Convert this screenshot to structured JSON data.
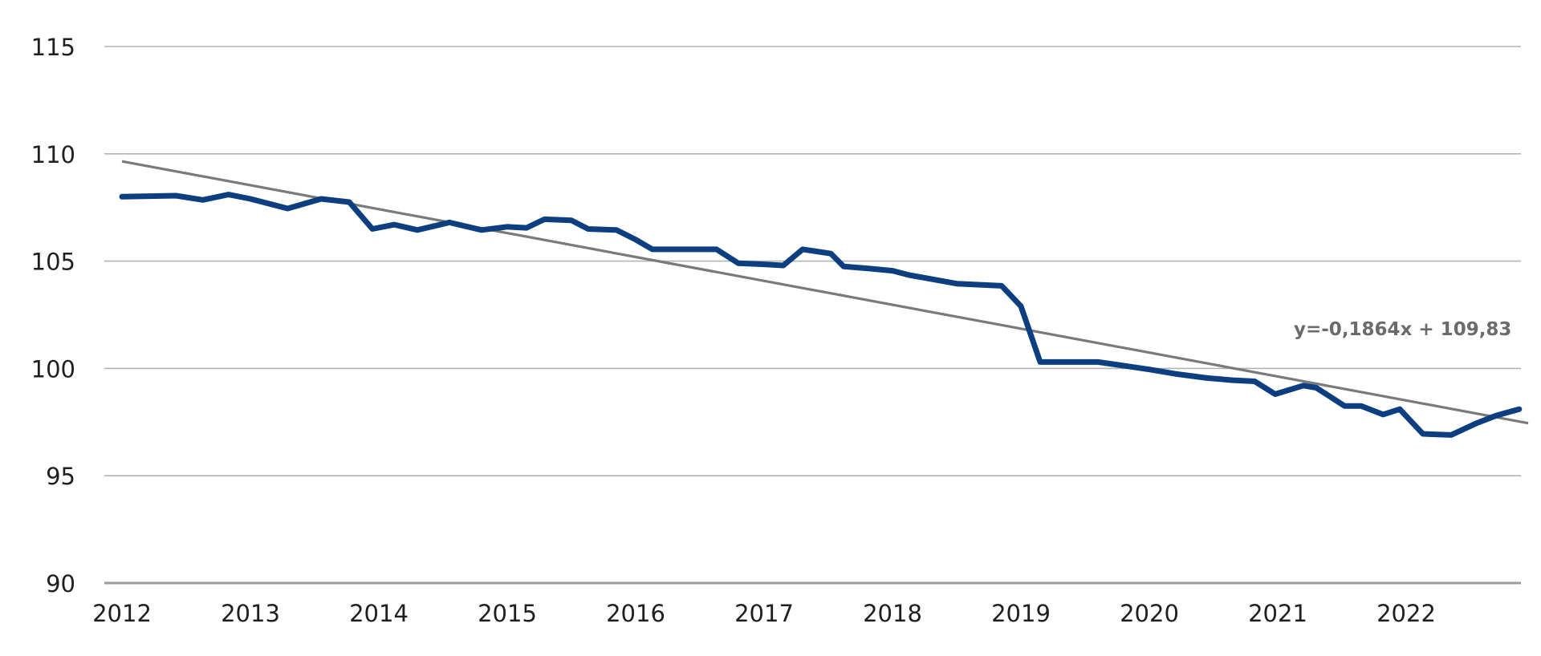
{
  "chart_data": {
    "type": "line",
    "title": "",
    "xlabel": "",
    "ylabel": "",
    "ylim": [
      90,
      115
    ],
    "yticks": [
      90,
      95,
      100,
      105,
      110,
      115
    ],
    "xlim": [
      2011.9,
      2023.0
    ],
    "xticks": [
      2012,
      2013,
      2014,
      2015,
      2016,
      2017,
      2018,
      2019,
      2020,
      2021,
      2022
    ],
    "grid": true,
    "legend": "none",
    "colors": {
      "series": "#0d3f80",
      "trend": "#7a7a7a",
      "grid": "#b3b3b3",
      "baseline": "#9c9c9c"
    },
    "series": [
      {
        "x": [
          2012.0,
          2012.42,
          2012.63,
          2012.83,
          2013.0,
          2013.29,
          2013.55,
          2013.77,
          2013.95,
          2014.12,
          2014.3,
          2014.55,
          2014.8,
          2015.0,
          2015.15,
          2015.29,
          2015.5,
          2015.63,
          2015.85,
          2016.0,
          2016.13,
          2016.3,
          2016.63,
          2016.8,
          2017.0,
          2017.15,
          2017.3,
          2017.52,
          2017.62,
          2017.83,
          2018.0,
          2018.13,
          2018.5,
          2018.85,
          2019.0,
          2019.15,
          2019.3,
          2019.6,
          2019.83,
          2020.0,
          2020.2,
          2020.45,
          2020.65,
          2020.82,
          2020.98,
          2021.2,
          2021.3,
          2021.52,
          2021.65,
          2021.82,
          2021.95,
          2022.13,
          2022.35,
          2022.55,
          2022.7,
          2022.88
        ],
        "y": [
          108.0,
          108.05,
          107.85,
          108.1,
          107.9,
          107.45,
          107.9,
          107.75,
          106.5,
          106.7,
          106.45,
          106.8,
          106.45,
          106.6,
          106.55,
          106.95,
          106.9,
          106.5,
          106.45,
          106.0,
          105.55,
          105.55,
          105.55,
          104.9,
          104.85,
          104.8,
          105.55,
          105.35,
          104.75,
          104.65,
          104.55,
          104.35,
          103.95,
          103.85,
          102.9,
          100.3,
          100.3,
          100.3,
          100.1,
          99.95,
          99.75,
          99.55,
          99.45,
          99.4,
          98.8,
          99.2,
          99.1,
          98.25,
          98.25,
          97.85,
          98.1,
          96.95,
          96.9,
          97.45,
          97.8,
          98.1
        ]
      }
    ],
    "trendline": {
      "equation": "y=-0,1864x + 109,83",
      "start": [
        2012.0,
        109.65
      ],
      "end": [
        2022.95,
        97.45
      ]
    }
  }
}
